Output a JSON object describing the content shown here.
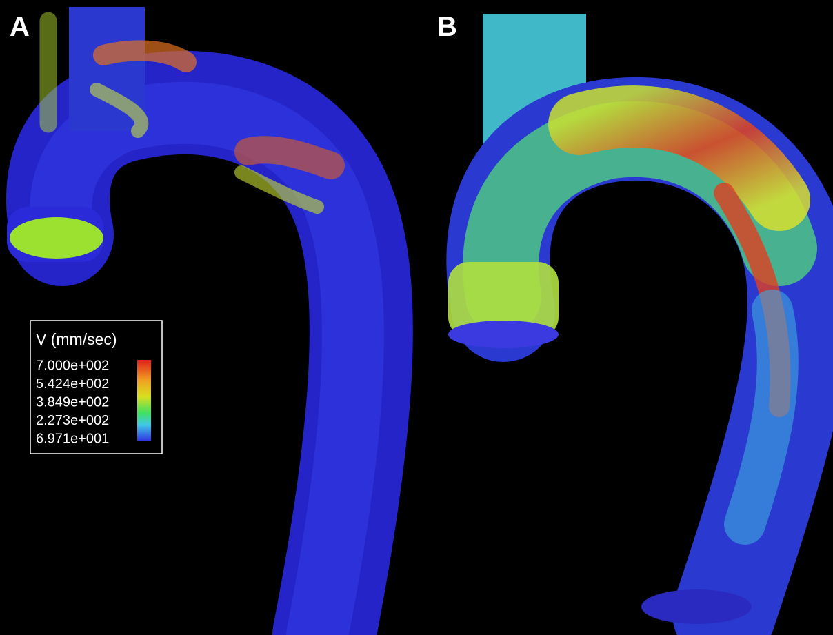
{
  "panels": [
    {
      "label": "A"
    },
    {
      "label": "B"
    }
  ],
  "legend": {
    "title": "V (mm/sec)",
    "labels": [
      "7.000e+002",
      "5.424e+002",
      "3.849e+002",
      "2.273e+002",
      "6.971e+001"
    ]
  }
}
